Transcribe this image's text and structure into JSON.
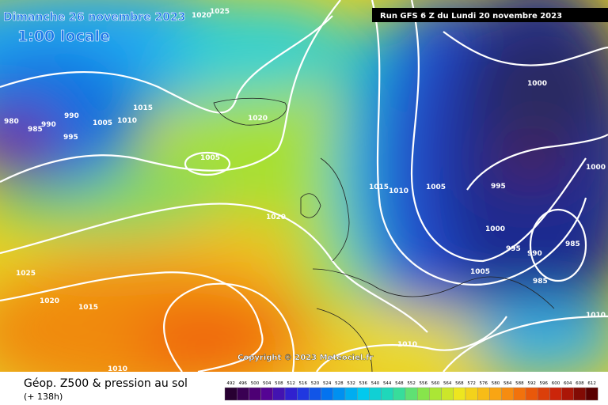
{
  "header": {
    "date": "Dimanche 26 novembre 2023",
    "time": "1:00 locale",
    "run": "Run GFS 6 Z du Lundi 20 novembre 2023"
  },
  "isobar_labels": [
    "1020",
    "1025",
    "980",
    "985",
    "990",
    "990",
    "995",
    "1005",
    "1010",
    "1015",
    "1020",
    "1005",
    "1020",
    "1025",
    "1020",
    "1015",
    "1010",
    "1015",
    "1010",
    "1005",
    "1000",
    "1000",
    "995",
    "1000",
    "995",
    "990",
    "985",
    "985",
    "1005",
    "1010",
    "1010"
  ],
  "copyright": "Copyright © 2023 Meteociel.fr",
  "footer": {
    "title": "Géop. Z500 & pression au sol",
    "lead": "(+ 138h)"
  },
  "legend": {
    "values": [
      492,
      496,
      500,
      504,
      508,
      512,
      516,
      520,
      524,
      528,
      532,
      536,
      540,
      544,
      548,
      552,
      556,
      560,
      564,
      568,
      572,
      576,
      580,
      584,
      588,
      592,
      596,
      600,
      604,
      608,
      612
    ]
  }
}
